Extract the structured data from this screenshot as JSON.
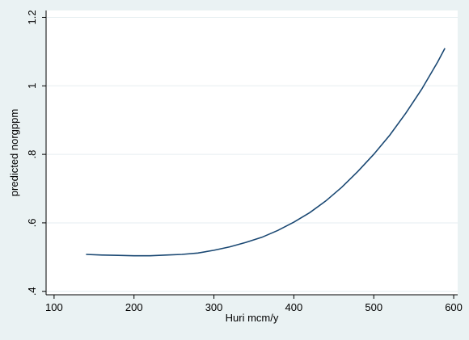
{
  "chart_data": {
    "type": "line",
    "title": "",
    "xlabel": "Huri mcm/y",
    "ylabel": "predicted norgppm",
    "xlim": [
      90,
      605
    ],
    "ylim": [
      0.39,
      1.22
    ],
    "x_ticks": [
      100,
      200,
      300,
      400,
      500,
      600
    ],
    "x_tick_labels": [
      "100",
      "200",
      "300",
      "400",
      "500",
      "600"
    ],
    "y_ticks": [
      0.4,
      0.6,
      0.8,
      1.0,
      1.2
    ],
    "y_tick_labels": [
      ".4",
      ".6",
      ".8",
      "1",
      "1.2"
    ],
    "grid": "horizontal",
    "colors": {
      "background": "#eaf2f3",
      "plot_area": "#ffffff",
      "grid": "#e6eef0",
      "line": "#1a4873",
      "axis": "#000000"
    },
    "series": [
      {
        "x": [
          140,
          160,
          180,
          200,
          220,
          240,
          260,
          280,
          300,
          320,
          340,
          360,
          380,
          400,
          420,
          440,
          460,
          480,
          500,
          520,
          540,
          560,
          580,
          589
        ],
        "y": [
          0.508,
          0.506,
          0.505,
          0.504,
          0.504,
          0.506,
          0.508,
          0.512,
          0.52,
          0.53,
          0.543,
          0.558,
          0.578,
          0.602,
          0.63,
          0.664,
          0.704,
          0.75,
          0.8,
          0.856,
          0.92,
          0.99,
          1.07,
          1.11
        ]
      }
    ]
  }
}
